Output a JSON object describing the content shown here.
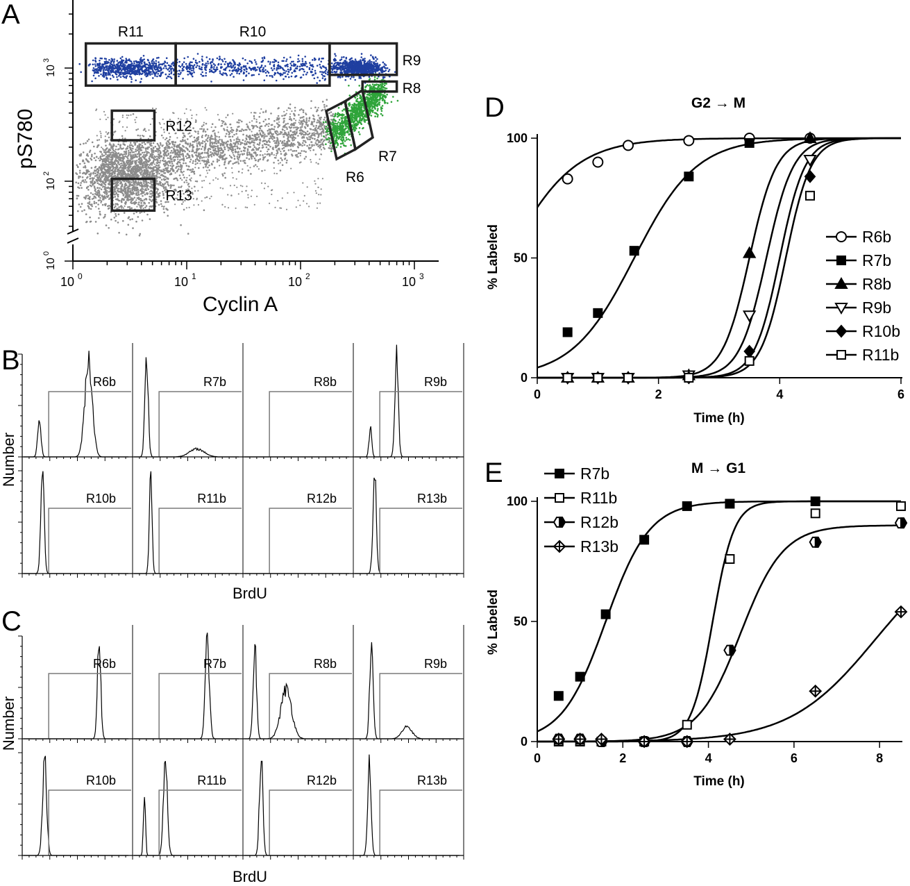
{
  "panel_letters": [
    "A",
    "B",
    "C",
    "D",
    "E"
  ],
  "chart_data": [
    {
      "panel": "A",
      "type": "scatter",
      "xlabel": "Cyclin A",
      "ylabel": "pS780",
      "xscale": "log",
      "yscale": "log",
      "x_ticks": [
        "10",
        "10",
        "10",
        "10"
      ],
      "x_tick_exps": [
        "0",
        "1",
        "2",
        "3"
      ],
      "y_ticks": [
        "10",
        "10",
        "10"
      ],
      "y_tick_exps": [
        "0",
        "2",
        "3"
      ],
      "xlim": [
        1,
        1000
      ],
      "ylim": [
        1,
        2000
      ],
      "colors": {
        "gray_population": "#8c8c8c",
        "blue_population": "#1f3fa0",
        "green_population": "#2fa43a"
      },
      "regions": [
        {
          "label": "R6",
          "x": [
            180,
            300
          ],
          "y": [
            240,
            600
          ]
        },
        {
          "label": "R7",
          "x": [
            300,
            450
          ],
          "y": [
            280,
            700
          ]
        },
        {
          "label": "R8",
          "x": [
            350,
            700
          ],
          "y": [
            620,
            760
          ]
        },
        {
          "label": "R9",
          "x": [
            180,
            700
          ],
          "y": [
            870,
            1650
          ]
        },
        {
          "label": "R10",
          "x": [
            8,
            180
          ],
          "y": [
            700,
            1650
          ]
        },
        {
          "label": "R11",
          "x": [
            1.3,
            8
          ],
          "y": [
            700,
            1650
          ]
        },
        {
          "label": "R12",
          "x": [
            2.2,
            5.2
          ],
          "y": [
            230,
            420
          ]
        },
        {
          "label": "R13",
          "x": [
            2.2,
            5.2
          ],
          "y": [
            55,
            105
          ]
        }
      ]
    },
    {
      "panel": "B",
      "type": "histogram",
      "xlabel": "BrdU",
      "ylabel": "Number",
      "histograms": [
        {
          "label": "R6b",
          "peaks": [
            {
              "x": 0.15,
              "h": 0.35,
              "w": 0.05
            },
            {
              "x": 0.62,
              "h": 1.0,
              "w": 0.11
            }
          ]
        },
        {
          "label": "R7b",
          "peaks": [
            {
              "x": 0.12,
              "h": 1.0,
              "w": 0.05
            },
            {
              "x": 0.6,
              "h": 0.08,
              "w": 0.22
            }
          ]
        },
        {
          "label": "R8b",
          "peaks": []
        },
        {
          "label": "R9b",
          "peaks": [
            {
              "x": 0.15,
              "h": 0.3,
              "w": 0.04
            },
            {
              "x": 0.4,
              "h": 1.0,
              "w": 0.05
            }
          ]
        },
        {
          "label": "R10b",
          "peaks": [
            {
              "x": 0.18,
              "h": 1.0,
              "w": 0.05
            }
          ]
        },
        {
          "label": "R11b",
          "peaks": [
            {
              "x": 0.16,
              "h": 1.0,
              "w": 0.04
            }
          ]
        },
        {
          "label": "R12b",
          "peaks": []
        },
        {
          "label": "R13b",
          "peaks": [
            {
              "x": 0.19,
              "h": 1.0,
              "w": 0.05
            }
          ]
        }
      ]
    },
    {
      "panel": "C",
      "type": "histogram",
      "xlabel": "BrdU",
      "ylabel": "Number",
      "histograms": [
        {
          "label": "R6b",
          "peaks": [
            {
              "x": 0.72,
              "h": 1.0,
              "w": 0.05
            }
          ]
        },
        {
          "label": "R7b",
          "peaks": [
            {
              "x": 0.7,
              "h": 1.0,
              "w": 0.06
            }
          ]
        },
        {
          "label": "R8b",
          "peaks": [
            {
              "x": 0.1,
              "h": 0.95,
              "w": 0.05
            },
            {
              "x": 0.4,
              "h": 0.5,
              "w": 0.16
            }
          ]
        },
        {
          "label": "R9b",
          "peaks": [
            {
              "x": 0.16,
              "h": 1.0,
              "w": 0.05
            },
            {
              "x": 0.5,
              "h": 0.12,
              "w": 0.15
            }
          ]
        },
        {
          "label": "R10b",
          "peaks": [
            {
              "x": 0.2,
              "h": 1.0,
              "w": 0.06
            }
          ]
        },
        {
          "label": "R11b",
          "peaks": [
            {
              "x": 0.1,
              "h": 0.65,
              "w": 0.03
            },
            {
              "x": 0.3,
              "h": 0.9,
              "w": 0.06
            }
          ]
        },
        {
          "label": "R12b",
          "peaks": [
            {
              "x": 0.16,
              "h": 1.0,
              "w": 0.05
            }
          ]
        },
        {
          "label": "R13b",
          "peaks": [
            {
              "x": 0.14,
              "h": 1.0,
              "w": 0.05
            }
          ]
        }
      ]
    },
    {
      "panel": "D",
      "type": "line",
      "title": "G2 → M",
      "xlabel": "Time (h)",
      "ylabel": "% Labeled",
      "xlim": [
        0,
        6
      ],
      "ylim": [
        0,
        100
      ],
      "x_ticks": [
        0,
        2,
        4,
        6
      ],
      "y_ticks": [
        0,
        50,
        100
      ],
      "legend_position": "right",
      "series": [
        {
          "name": "R6b",
          "marker": "circle-open",
          "x": [
            0.5,
            1.0,
            1.5,
            2.5,
            3.5,
            4.5
          ],
          "y": [
            83,
            90,
            97,
            99,
            100,
            100
          ],
          "curve": {
            "bottom": 0,
            "top": 100,
            "mid": -0.5,
            "k": 1.8
          }
        },
        {
          "name": "R7b",
          "marker": "square-filled",
          "x": [
            0.5,
            1.0,
            1.6,
            2.5,
            3.5
          ],
          "y": [
            19,
            27,
            53,
            84,
            98
          ],
          "curve": {
            "bottom": 0,
            "top": 100,
            "mid": 1.6,
            "k": 1.95
          }
        },
        {
          "name": "R8b",
          "marker": "triangle-up-filled",
          "x": [
            0.5,
            1.0,
            1.5,
            2.5,
            3.5,
            4.5
          ],
          "y": [
            0,
            0,
            0,
            1,
            52,
            100
          ],
          "curve": {
            "bottom": 0,
            "top": 100,
            "mid": 3.5,
            "k": 4.5
          }
        },
        {
          "name": "R9b",
          "marker": "triangle-down-open",
          "x": [
            0.5,
            1.0,
            1.5,
            2.5,
            3.5,
            4.5
          ],
          "y": [
            0,
            0,
            0,
            1,
            26,
            91
          ],
          "curve": {
            "bottom": 0,
            "top": 100,
            "mid": 3.78,
            "k": 4.5
          }
        },
        {
          "name": "R10b",
          "marker": "diamond-filled",
          "x": [
            0.5,
            1.0,
            1.5,
            2.5,
            3.5,
            4.5
          ],
          "y": [
            0,
            0,
            0,
            0,
            11,
            84
          ],
          "curve": {
            "bottom": 0,
            "top": 100,
            "mid": 4.0,
            "k": 4.8
          }
        },
        {
          "name": "R11b",
          "marker": "square-open",
          "x": [
            0.5,
            1.0,
            1.5,
            2.5,
            3.5,
            4.5
          ],
          "y": [
            0,
            0,
            0,
            0,
            7,
            76
          ],
          "curve": {
            "bottom": 0,
            "top": 100,
            "mid": 4.1,
            "k": 4.8
          }
        }
      ]
    },
    {
      "panel": "E",
      "type": "line",
      "title": "M → G1",
      "xlabel": "Time (h)",
      "ylabel": "% Labeled",
      "xlim": [
        0,
        8.5
      ],
      "ylim": [
        0,
        100
      ],
      "x_ticks": [
        0,
        2,
        4,
        6,
        8
      ],
      "y_ticks": [
        0,
        50,
        100
      ],
      "legend_position": "top-left",
      "series": [
        {
          "name": "R7b",
          "marker": "square-filled",
          "x": [
            0.5,
            1.0,
            1.6,
            2.5,
            3.5,
            4.5,
            6.5
          ],
          "y": [
            19,
            27,
            53,
            84,
            98,
            99,
            100
          ],
          "curve": {
            "bottom": 0,
            "top": 100,
            "mid": 1.6,
            "k": 1.95
          }
        },
        {
          "name": "R11b",
          "marker": "square-open",
          "x": [
            0.5,
            1.0,
            1.5,
            2.5,
            3.5,
            4.5,
            6.5,
            8.5
          ],
          "y": [
            0,
            0,
            0,
            0,
            7,
            76,
            95,
            98
          ],
          "curve": {
            "bottom": 0,
            "top": 100,
            "mid": 4.1,
            "k": 4.0
          }
        },
        {
          "name": "R12b",
          "marker": "hexagon-half",
          "x": [
            0.5,
            1.0,
            1.5,
            2.5,
            3.5,
            4.5,
            6.5,
            8.5
          ],
          "y": [
            1,
            1,
            0,
            0,
            0,
            38,
            83,
            91
          ],
          "curve": {
            "bottom": 0,
            "top": 90,
            "mid": 4.75,
            "k": 2.0
          }
        },
        {
          "name": "R13b",
          "marker": "diamond-cross",
          "x": [
            0.5,
            1.0,
            1.5,
            2.5,
            3.5,
            4.5,
            6.5,
            8.5
          ],
          "y": [
            1,
            1,
            1,
            0,
            0,
            1,
            21,
            54
          ],
          "curve": {
            "bottom": 0,
            "top": 85,
            "mid": 7.9,
            "k": 1.0
          }
        }
      ]
    }
  ]
}
